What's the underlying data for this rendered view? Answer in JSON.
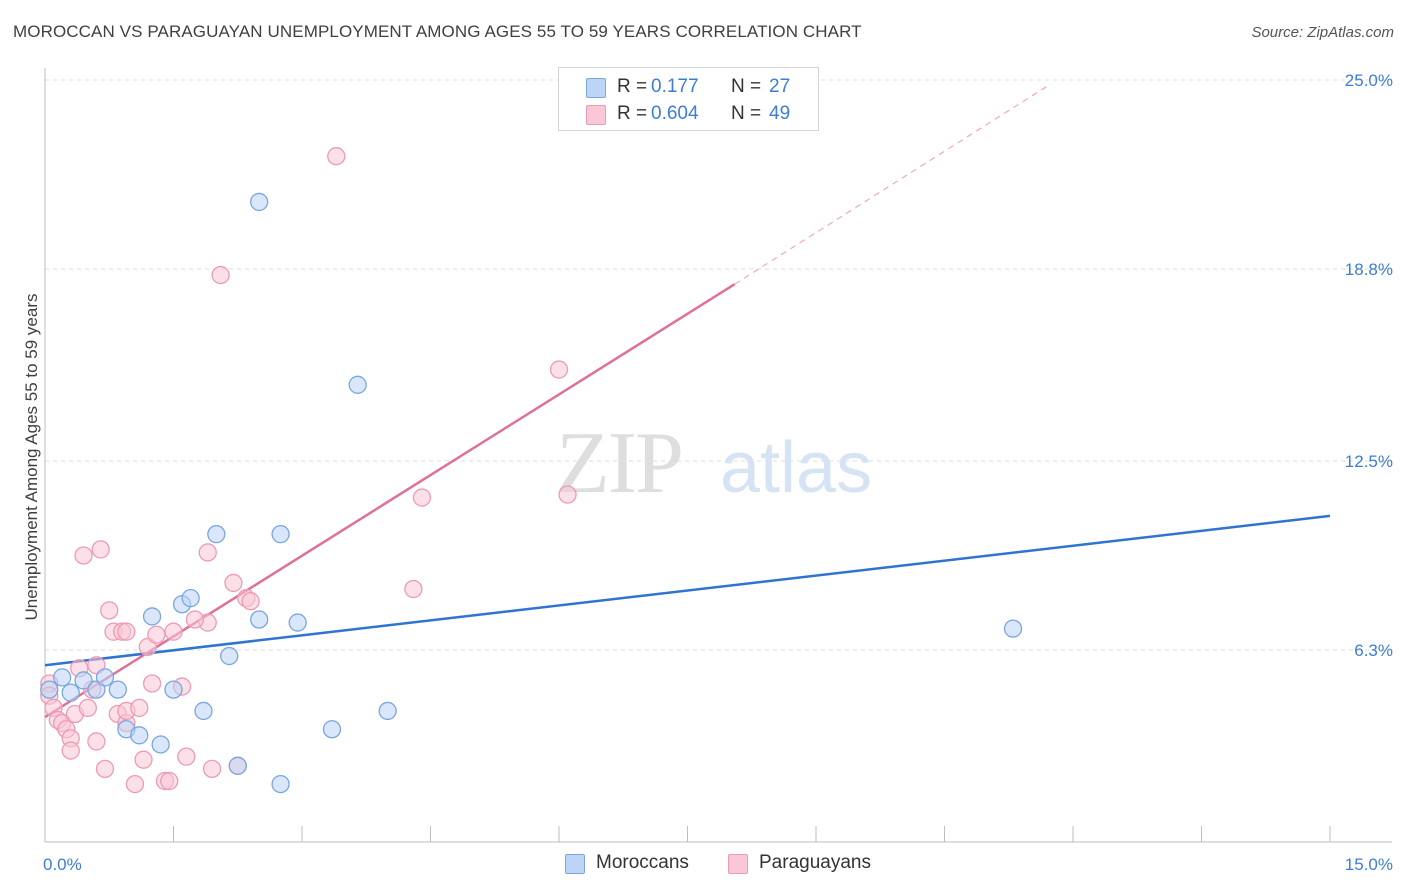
{
  "header": {
    "title": "MOROCCAN VS PARAGUAYAN UNEMPLOYMENT AMONG AGES 55 TO 59 YEARS CORRELATION CHART",
    "source": "Source: ZipAtlas.com"
  },
  "watermark": {
    "zip": "ZIP",
    "atlas": "atlas"
  },
  "legend": {
    "rows": [
      {
        "r_label": "R =",
        "r_value": "0.177",
        "n_label": "N =",
        "n_value": "27"
      },
      {
        "r_label": "R =",
        "r_value": "0.604",
        "n_label": "N =",
        "n_value": "49"
      }
    ]
  },
  "bottom_legend": {
    "moroccans": "Moroccans",
    "paraguayans": "Paraguayans"
  },
  "colors": {
    "moroccans_fill": "#bcd4f5",
    "moroccans_stroke": "#7aa6e0",
    "moroccans_line": "#2f74cf",
    "paraguayans_fill": "#f9c7d6",
    "paraguayans_stroke": "#ec9bb5",
    "paraguayans_line": "#e0709a",
    "value_text": "#3b7dd8",
    "grid": "#dddddd"
  },
  "chart_data": {
    "type": "scatter",
    "title": "MOROCCAN VS PARAGUAYAN UNEMPLOYMENT AMONG AGES 55 TO 59 YEARS CORRELATION CHART",
    "xlabel": "",
    "ylabel": "Unemployment Among Ages 55 to 59 years",
    "xlim": [
      0,
      15
    ],
    "ylim": [
      0,
      25
    ],
    "x_tick_labels": [
      "0.0%",
      "15.0%"
    ],
    "y_tick_values": [
      6.3,
      12.5,
      18.8,
      25.0
    ],
    "y_tick_labels": [
      "6.3%",
      "12.5%",
      "18.8%",
      "25.0%"
    ],
    "grid": true,
    "legend_position": "top-center",
    "series": [
      {
        "name": "Moroccans",
        "r": 0.177,
        "n": 27,
        "trend": {
          "x": [
            0,
            15
          ],
          "y": [
            5.8,
            10.7
          ]
        },
        "points": [
          [
            0.05,
            5.0
          ],
          [
            0.2,
            5.4
          ],
          [
            0.3,
            4.9
          ],
          [
            0.45,
            5.3
          ],
          [
            0.6,
            5.0
          ],
          [
            0.7,
            5.4
          ],
          [
            0.85,
            5.0
          ],
          [
            0.95,
            3.7
          ],
          [
            1.1,
            3.5
          ],
          [
            1.25,
            7.4
          ],
          [
            1.35,
            3.2
          ],
          [
            1.5,
            5.0
          ],
          [
            1.6,
            7.8
          ],
          [
            1.7,
            8.0
          ],
          [
            1.85,
            4.3
          ],
          [
            2.0,
            10.1
          ],
          [
            2.15,
            6.1
          ],
          [
            2.25,
            2.5
          ],
          [
            2.5,
            21.0
          ],
          [
            2.5,
            7.3
          ],
          [
            2.75,
            10.1
          ],
          [
            2.75,
            1.9
          ],
          [
            2.95,
            7.2
          ],
          [
            3.35,
            3.7
          ],
          [
            3.65,
            15.0
          ],
          [
            4.0,
            4.3
          ],
          [
            11.3,
            7.0
          ]
        ]
      },
      {
        "name": "Paraguayans",
        "r": 0.604,
        "n": 49,
        "trend": {
          "x": [
            0,
            8.05
          ],
          "y": [
            4.1,
            18.3
          ]
        },
        "trend_dashed": {
          "x": [
            8.05,
            11.7
          ],
          "y": [
            18.3,
            24.8
          ]
        },
        "points": [
          [
            0.05,
            5.2
          ],
          [
            0.05,
            4.8
          ],
          [
            0.1,
            4.4
          ],
          [
            0.15,
            4.0
          ],
          [
            0.2,
            3.9
          ],
          [
            0.25,
            3.7
          ],
          [
            0.3,
            3.4
          ],
          [
            0.35,
            4.2
          ],
          [
            0.3,
            3.0
          ],
          [
            0.4,
            5.7
          ],
          [
            0.45,
            9.4
          ],
          [
            0.5,
            4.4
          ],
          [
            0.55,
            5.0
          ],
          [
            0.6,
            5.8
          ],
          [
            0.6,
            3.3
          ],
          [
            0.65,
            9.6
          ],
          [
            0.7,
            2.4
          ],
          [
            0.75,
            7.6
          ],
          [
            0.8,
            6.9
          ],
          [
            0.85,
            4.2
          ],
          [
            0.9,
            6.9
          ],
          [
            0.95,
            3.9
          ],
          [
            0.95,
            4.3
          ],
          [
            0.95,
            6.9
          ],
          [
            1.05,
            1.9
          ],
          [
            1.1,
            4.4
          ],
          [
            1.15,
            2.7
          ],
          [
            1.2,
            6.4
          ],
          [
            1.3,
            6.8
          ],
          [
            1.4,
            2.0
          ],
          [
            1.45,
            2.0
          ],
          [
            1.5,
            6.9
          ],
          [
            1.6,
            5.1
          ],
          [
            1.65,
            2.8
          ],
          [
            1.9,
            7.2
          ],
          [
            1.75,
            7.3
          ],
          [
            1.9,
            9.5
          ],
          [
            1.95,
            2.4
          ],
          [
            2.05,
            18.6
          ],
          [
            2.25,
            2.5
          ],
          [
            2.2,
            8.5
          ],
          [
            2.35,
            8.0
          ],
          [
            2.4,
            7.9
          ],
          [
            3.4,
            22.5
          ],
          [
            4.3,
            8.3
          ],
          [
            4.4,
            11.3
          ],
          [
            6.0,
            15.5
          ],
          [
            6.1,
            11.4
          ],
          [
            1.25,
            5.2
          ]
        ]
      }
    ]
  }
}
